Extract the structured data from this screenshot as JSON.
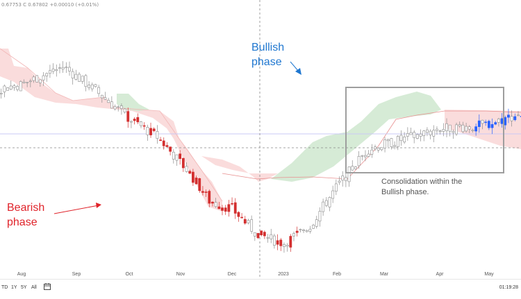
{
  "header": {
    "ohlc_text": "0.67753  C 0.67802  +0.00010 (+0.01%)"
  },
  "annotations": {
    "bullish": [
      "Bullish",
      "phase"
    ],
    "bearish": [
      "Bearish",
      "phase"
    ],
    "consolidation": [
      "Consolidation within the",
      "Bullish phase."
    ]
  },
  "toolbar": {
    "ranges": [
      "TD",
      "1Y",
      "5Y",
      "All"
    ],
    "time": "01:19:28"
  },
  "colors": {
    "bull_candle": "#2962ff",
    "bear_candle": "#d32f2f",
    "neutral_candle": "#8c8c8c",
    "cloud_bear": "#f8d0d0",
    "cloud_bull": "#cfe8cf",
    "bull_text": "#1f77d0",
    "bear_text": "#e0232a",
    "box": "#9e9e9e"
  },
  "chart_data": {
    "type": "candlestick",
    "x_ticks": [
      "Aug",
      "Sep",
      "Oct",
      "Nov",
      "Dec",
      "2023",
      "Feb",
      "Mar",
      "Apr",
      "May"
    ],
    "trend_points": [
      [
        0.0,
        0.683
      ],
      [
        2.0,
        0.69
      ],
      [
        2.8,
        0.696
      ],
      [
        3.4,
        0.688
      ],
      [
        4.0,
        0.679
      ],
      [
        4.6,
        0.672
      ],
      [
        5.2,
        0.66
      ],
      [
        5.6,
        0.65
      ],
      [
        6.0,
        0.648
      ],
      [
        6.5,
        0.639
      ],
      [
        7.0,
        0.636
      ],
      [
        7.5,
        0.642
      ],
      [
        8.0,
        0.655
      ],
      [
        8.6,
        0.668
      ],
      [
        9.2,
        0.671
      ],
      [
        10.0,
        0.675
      ],
      [
        10.8,
        0.676
      ],
      [
        11.5,
        0.68
      ],
      [
        12.2,
        0.674
      ],
      [
        12.6,
        0.68
      ],
      [
        13.2,
        0.686
      ],
      [
        13.8,
        0.696
      ],
      [
        14.3,
        0.703
      ],
      [
        14.8,
        0.701
      ],
      [
        15.0,
        0.688
      ],
      [
        15.4,
        0.69
      ],
      [
        15.8,
        0.686
      ],
      [
        16.2,
        0.68
      ],
      [
        16.8,
        0.675
      ],
      [
        17.4,
        0.674
      ],
      [
        18.0,
        0.676
      ],
      [
        18.6,
        0.675
      ],
      [
        19.2,
        0.677
      ],
      [
        19.6,
        0.678
      ]
    ],
    "phases": [
      {
        "label": "bearish",
        "start_month": 2.0,
        "end_month": 7.5
      },
      {
        "label": "bullish",
        "start_month": 7.5,
        "end_month": 19.6
      },
      {
        "label": "consolidation",
        "start_month": 14.9,
        "end_month": 19.6
      }
    ]
  }
}
